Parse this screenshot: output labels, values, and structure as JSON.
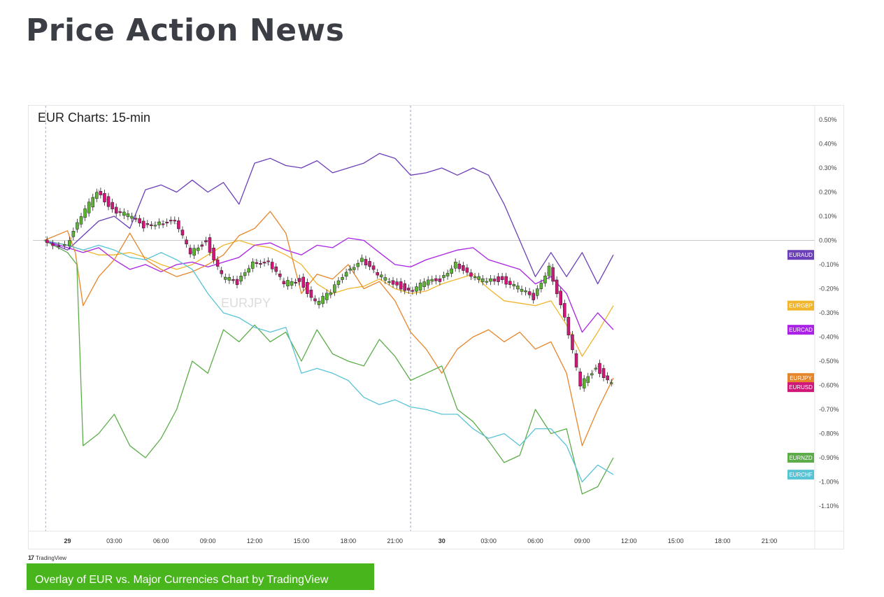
{
  "page": {
    "title": "Price Action News"
  },
  "chart_title": "EUR Charts: 15-min",
  "watermark": "EURJPY",
  "credit": {
    "logo": "17",
    "text": "TradingView"
  },
  "caption": "Overlay of EUR vs. Major Currencies Chart by TradingView",
  "chart_data": {
    "type": "line",
    "title": "EUR Charts: 15-min",
    "x_unit": "hours since 29 00:00",
    "x_range": [
      -1.5,
      72
    ],
    "x_ticks": [
      {
        "t": 0,
        "label": "29"
      },
      {
        "t": 3,
        "label": "03:00"
      },
      {
        "t": 6,
        "label": "06:00"
      },
      {
        "t": 9,
        "label": "09:00"
      },
      {
        "t": 12,
        "label": "12:00"
      },
      {
        "t": 15,
        "label": "15:00"
      },
      {
        "t": 18,
        "label": "18:00"
      },
      {
        "t": 21,
        "label": "21:00"
      },
      {
        "t": 24,
        "label": "30"
      },
      {
        "t": 27,
        "label": "03:00"
      },
      {
        "t": 30,
        "label": "06:00"
      },
      {
        "t": 33,
        "label": "09:00"
      },
      {
        "t": 36,
        "label": "12:00"
      },
      {
        "t": 39,
        "label": "15:00"
      },
      {
        "t": 42,
        "label": "18:00"
      },
      {
        "t": 45,
        "label": "21:00"
      }
    ],
    "y_range": [
      -1.2,
      0.52
    ],
    "y_ticks": [
      0.5,
      0.4,
      0.3,
      0.2,
      0.1,
      0.0,
      -0.1,
      -0.2,
      -0.3,
      -0.4,
      -0.5,
      -0.6,
      -0.7,
      -0.8,
      -0.9,
      -1.0,
      -1.1
    ],
    "y_tick_labels": [
      "0.50%",
      "0.40%",
      "0.30%",
      "0.20%",
      "0.10%",
      "0.00%",
      "-0.10%",
      "-0.20%",
      "-0.30%",
      "-0.40%",
      "-0.50%",
      "-0.60%",
      "-0.70%",
      "-0.80%",
      "-0.90%",
      "-1.00%",
      "-1.10%"
    ],
    "zero_line": 0,
    "session_lines": [
      -1.4,
      22.0
    ],
    "series": [
      {
        "name": "EURAUD",
        "color": "#6b3fb8",
        "last": -0.06,
        "points": [
          [
            -1.5,
            0
          ],
          [
            0,
            -0.04
          ],
          [
            1,
            0.02
          ],
          [
            2,
            0.08
          ],
          [
            3,
            0.1
          ],
          [
            4,
            0.05
          ],
          [
            5,
            0.21
          ],
          [
            6,
            0.23
          ],
          [
            7,
            0.2
          ],
          [
            8,
            0.25
          ],
          [
            9,
            0.2
          ],
          [
            10,
            0.24
          ],
          [
            11,
            0.15
          ],
          [
            12,
            0.32
          ],
          [
            13,
            0.34
          ],
          [
            14,
            0.31
          ],
          [
            15,
            0.3
          ],
          [
            16,
            0.33
          ],
          [
            17,
            0.28
          ],
          [
            18,
            0.3
          ],
          [
            19,
            0.32
          ],
          [
            20,
            0.36
          ],
          [
            21,
            0.34
          ],
          [
            22,
            0.27
          ],
          [
            23,
            0.28
          ],
          [
            24,
            0.3
          ],
          [
            25,
            0.27
          ],
          [
            26,
            0.3
          ],
          [
            27,
            0.27
          ],
          [
            28,
            0.15
          ],
          [
            29,
            0.0
          ],
          [
            30,
            -0.15
          ],
          [
            31,
            -0.05
          ],
          [
            32,
            -0.15
          ],
          [
            33,
            -0.05
          ],
          [
            34,
            -0.18
          ],
          [
            35,
            -0.06
          ]
        ]
      },
      {
        "name": "EURGBP",
        "color": "#f0b52b",
        "last": -0.27,
        "points": [
          [
            -1.5,
            0
          ],
          [
            0,
            -0.02
          ],
          [
            1,
            -0.04
          ],
          [
            2,
            -0.06
          ],
          [
            3,
            -0.06
          ],
          [
            4,
            -0.05
          ],
          [
            5,
            -0.07
          ],
          [
            6,
            -0.1
          ],
          [
            7,
            -0.12
          ],
          [
            8,
            -0.1
          ],
          [
            9,
            -0.06
          ],
          [
            10,
            -0.02
          ],
          [
            11,
            0.0
          ],
          [
            12,
            -0.02
          ],
          [
            13,
            -0.03
          ],
          [
            14,
            -0.06
          ],
          [
            15,
            -0.1
          ],
          [
            16,
            -0.18
          ],
          [
            17,
            -0.22
          ],
          [
            18,
            -0.2
          ],
          [
            19,
            -0.19
          ],
          [
            20,
            -0.16
          ],
          [
            21,
            -0.2
          ],
          [
            22,
            -0.22
          ],
          [
            23,
            -0.21
          ],
          [
            24,
            -0.18
          ],
          [
            25,
            -0.16
          ],
          [
            26,
            -0.14
          ],
          [
            27,
            -0.2
          ],
          [
            28,
            -0.25
          ],
          [
            29,
            -0.26
          ],
          [
            30,
            -0.27
          ],
          [
            31,
            -0.25
          ],
          [
            32,
            -0.35
          ],
          [
            33,
            -0.48
          ],
          [
            34,
            -0.38
          ],
          [
            35,
            -0.27
          ]
        ]
      },
      {
        "name": "EURCAD",
        "color": "#a922e6",
        "last": -0.37,
        "points": [
          [
            -1.5,
            0
          ],
          [
            0,
            -0.03
          ],
          [
            1,
            -0.05
          ],
          [
            2,
            -0.03
          ],
          [
            3,
            -0.08
          ],
          [
            4,
            -0.12
          ],
          [
            5,
            -0.1
          ],
          [
            6,
            -0.13
          ],
          [
            7,
            -0.1
          ],
          [
            8,
            -0.09
          ],
          [
            9,
            -0.11
          ],
          [
            10,
            -0.09
          ],
          [
            11,
            -0.07
          ],
          [
            12,
            -0.02
          ],
          [
            13,
            -0.01
          ],
          [
            14,
            -0.04
          ],
          [
            15,
            -0.06
          ],
          [
            16,
            -0.02
          ],
          [
            17,
            -0.03
          ],
          [
            18,
            0.01
          ],
          [
            19,
            0.0
          ],
          [
            20,
            -0.05
          ],
          [
            21,
            -0.1
          ],
          [
            22,
            -0.11
          ],
          [
            23,
            -0.08
          ],
          [
            24,
            -0.06
          ],
          [
            25,
            -0.04
          ],
          [
            26,
            -0.03
          ],
          [
            27,
            -0.08
          ],
          [
            28,
            -0.1
          ],
          [
            29,
            -0.12
          ],
          [
            30,
            -0.18
          ],
          [
            31,
            -0.15
          ],
          [
            32,
            -0.22
          ],
          [
            33,
            -0.38
          ],
          [
            34,
            -0.3
          ],
          [
            35,
            -0.37
          ]
        ]
      },
      {
        "name": "EURJPY",
        "color": "#e6862a",
        "last": -0.57,
        "points": [
          [
            -1.5,
            0
          ],
          [
            0,
            0.04
          ],
          [
            0.5,
            -0.05
          ],
          [
            1,
            -0.27
          ],
          [
            2,
            -0.15
          ],
          [
            3,
            -0.08
          ],
          [
            4,
            0.03
          ],
          [
            5,
            -0.08
          ],
          [
            6,
            -0.12
          ],
          [
            7,
            -0.15
          ],
          [
            8,
            -0.13
          ],
          [
            9,
            -0.1
          ],
          [
            10,
            -0.06
          ],
          [
            11,
            0.02
          ],
          [
            12,
            0.05
          ],
          [
            13,
            0.12
          ],
          [
            14,
            0.03
          ],
          [
            15,
            -0.22
          ],
          [
            16,
            -0.14
          ],
          [
            17,
            -0.16
          ],
          [
            18,
            -0.1
          ],
          [
            19,
            -0.2
          ],
          [
            20,
            -0.17
          ],
          [
            21,
            -0.25
          ],
          [
            22,
            -0.38
          ],
          [
            23,
            -0.45
          ],
          [
            24,
            -0.55
          ],
          [
            25,
            -0.45
          ],
          [
            26,
            -0.4
          ],
          [
            27,
            -0.37
          ],
          [
            28,
            -0.42
          ],
          [
            29,
            -0.38
          ],
          [
            30,
            -0.45
          ],
          [
            31,
            -0.42
          ],
          [
            32,
            -0.55
          ],
          [
            33,
            -0.85
          ],
          [
            34,
            -0.7
          ],
          [
            35,
            -0.57
          ]
        ]
      },
      {
        "name": "EURUSD",
        "color": "#d1167a",
        "last": -0.6,
        "candles": true,
        "points": [
          [
            -1.5,
            0
          ],
          [
            0,
            -0.02
          ],
          [
            1,
            0.09
          ],
          [
            2,
            0.21
          ],
          [
            3,
            0.13
          ],
          [
            4,
            0.1
          ],
          [
            5,
            0.06
          ],
          [
            6,
            0.08
          ],
          [
            7,
            0.07
          ],
          [
            8,
            -0.05
          ],
          [
            9,
            0.0
          ],
          [
            10,
            -0.15
          ],
          [
            11,
            -0.18
          ],
          [
            12,
            -0.08
          ],
          [
            13,
            -0.1
          ],
          [
            14,
            -0.18
          ],
          [
            15,
            -0.16
          ],
          [
            16,
            -0.26
          ],
          [
            17,
            -0.22
          ],
          [
            18,
            -0.12
          ],
          [
            19,
            -0.08
          ],
          [
            20,
            -0.15
          ],
          [
            21,
            -0.17
          ],
          [
            22,
            -0.21
          ],
          [
            23,
            -0.18
          ],
          [
            24,
            -0.16
          ],
          [
            25,
            -0.09
          ],
          [
            26,
            -0.16
          ],
          [
            27,
            -0.16
          ],
          [
            28,
            -0.16
          ],
          [
            29,
            -0.2
          ],
          [
            30,
            -0.24
          ],
          [
            31,
            -0.1
          ],
          [
            32,
            -0.33
          ],
          [
            33,
            -0.6
          ],
          [
            34,
            -0.52
          ],
          [
            35,
            -0.6
          ]
        ]
      },
      {
        "name": "EURNZD",
        "color": "#5cad4a",
        "last": -0.9,
        "points": [
          [
            -1.5,
            0
          ],
          [
            0,
            -0.05
          ],
          [
            0.6,
            -0.1
          ],
          [
            1,
            -0.85
          ],
          [
            2,
            -0.8
          ],
          [
            3,
            -0.72
          ],
          [
            4,
            -0.85
          ],
          [
            5,
            -0.9
          ],
          [
            6,
            -0.82
          ],
          [
            7,
            -0.7
          ],
          [
            8,
            -0.5
          ],
          [
            9,
            -0.55
          ],
          [
            10,
            -0.37
          ],
          [
            11,
            -0.42
          ],
          [
            12,
            -0.35
          ],
          [
            13,
            -0.42
          ],
          [
            14,
            -0.38
          ],
          [
            15,
            -0.5
          ],
          [
            16,
            -0.37
          ],
          [
            17,
            -0.47
          ],
          [
            18,
            -0.5
          ],
          [
            19,
            -0.52
          ],
          [
            20,
            -0.41
          ],
          [
            21,
            -0.48
          ],
          [
            22,
            -0.58
          ],
          [
            23,
            -0.55
          ],
          [
            24,
            -0.52
          ],
          [
            25,
            -0.7
          ],
          [
            26,
            -0.75
          ],
          [
            27,
            -0.83
          ],
          [
            28,
            -0.92
          ],
          [
            29,
            -0.89
          ],
          [
            30,
            -0.7
          ],
          [
            31,
            -0.8
          ],
          [
            32,
            -0.78
          ],
          [
            33,
            -1.05
          ],
          [
            34,
            -1.02
          ],
          [
            35,
            -0.9
          ]
        ]
      },
      {
        "name": "EURCHF",
        "color": "#59c3d6",
        "last": -0.97,
        "points": [
          [
            -1.5,
            0
          ],
          [
            0,
            -0.02
          ],
          [
            1,
            -0.04
          ],
          [
            2,
            -0.02
          ],
          [
            3,
            -0.04
          ],
          [
            4,
            -0.07
          ],
          [
            5,
            -0.08
          ],
          [
            6,
            -0.05
          ],
          [
            7,
            -0.08
          ],
          [
            8,
            -0.12
          ],
          [
            9,
            -0.22
          ],
          [
            10,
            -0.3
          ],
          [
            11,
            -0.32
          ],
          [
            12,
            -0.36
          ],
          [
            13,
            -0.38
          ],
          [
            14,
            -0.36
          ],
          [
            15,
            -0.55
          ],
          [
            16,
            -0.53
          ],
          [
            17,
            -0.55
          ],
          [
            18,
            -0.58
          ],
          [
            19,
            -0.65
          ],
          [
            20,
            -0.68
          ],
          [
            21,
            -0.66
          ],
          [
            22,
            -0.69
          ],
          [
            23,
            -0.7
          ],
          [
            24,
            -0.72
          ],
          [
            25,
            -0.72
          ],
          [
            26,
            -0.78
          ],
          [
            27,
            -0.82
          ],
          [
            28,
            -0.8
          ],
          [
            29,
            -0.85
          ],
          [
            30,
            -0.78
          ],
          [
            31,
            -0.78
          ],
          [
            32,
            -0.85
          ],
          [
            33,
            -1.0
          ],
          [
            34,
            -0.93
          ],
          [
            35,
            -0.97
          ]
        ]
      }
    ]
  }
}
